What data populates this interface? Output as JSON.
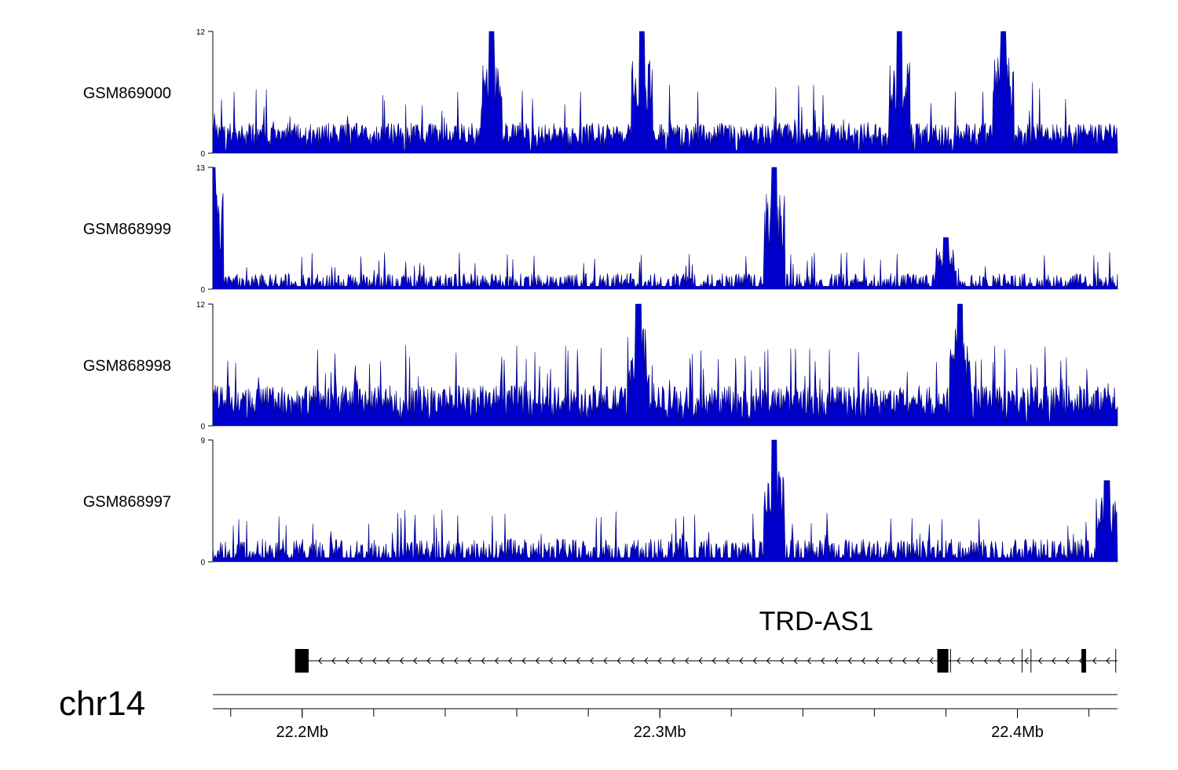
{
  "chart_data": {
    "type": "area",
    "tracks": [
      {
        "name": "GSM869000",
        "ymax": 12,
        "ymin": 0,
        "y_tick_labels": [
          "12",
          "0"
        ],
        "profile": "uniform-noisy"
      },
      {
        "name": "GSM868999",
        "ymax": 13,
        "ymin": 0,
        "y_tick_labels": [
          "13",
          "0"
        ],
        "profile": "low-with-peaks"
      },
      {
        "name": "GSM868998",
        "ymax": 12,
        "ymin": 0,
        "y_tick_labels": [
          "12",
          "0"
        ],
        "profile": "dense-noisy"
      },
      {
        "name": "GSM868997",
        "ymax": 9,
        "ymin": 0,
        "y_tick_labels": [
          "9",
          "0"
        ],
        "profile": "low-with-peaks"
      }
    ],
    "peaks": [
      {
        "track": 0,
        "x": 22.253,
        "y": 12
      },
      {
        "track": 0,
        "x": 22.295,
        "y": 12
      },
      {
        "track": 0,
        "x": 22.367,
        "y": 12
      },
      {
        "track": 0,
        "x": 22.396,
        "y": 12
      },
      {
        "track": 1,
        "x": 22.175,
        "y": 13
      },
      {
        "track": 1,
        "x": 22.332,
        "y": 13
      },
      {
        "track": 1,
        "x": 22.38,
        "y": 5.5
      },
      {
        "track": 2,
        "x": 22.294,
        "y": 12
      },
      {
        "track": 2,
        "x": 22.384,
        "y": 12
      },
      {
        "track": 3,
        "x": 22.332,
        "y": 9
      },
      {
        "track": 3,
        "x": 22.425,
        "y": 6
      }
    ],
    "xlim": [
      22.175,
      22.428
    ],
    "x_ticks": [
      22.2,
      22.3,
      22.4
    ],
    "x_tick_labels": [
      "22.2Mb",
      "22.3Mb",
      "22.4Mb"
    ],
    "chromosome": "chr14",
    "gene": {
      "name": "TRD-AS1",
      "start": 22.198,
      "end": 22.428,
      "strand": "-",
      "exons": [
        {
          "start": 22.198,
          "end": 22.2018
        },
        {
          "start": 22.3776,
          "end": 22.3807
        },
        {
          "start": 22.4179,
          "end": 22.4192
        }
      ],
      "junctions": [
        22.3813,
        22.4013,
        22.4038,
        22.4275
      ]
    },
    "colors": {
      "signal": "#0000cc",
      "signal_dark": "#000080",
      "axis": "#000000"
    }
  }
}
